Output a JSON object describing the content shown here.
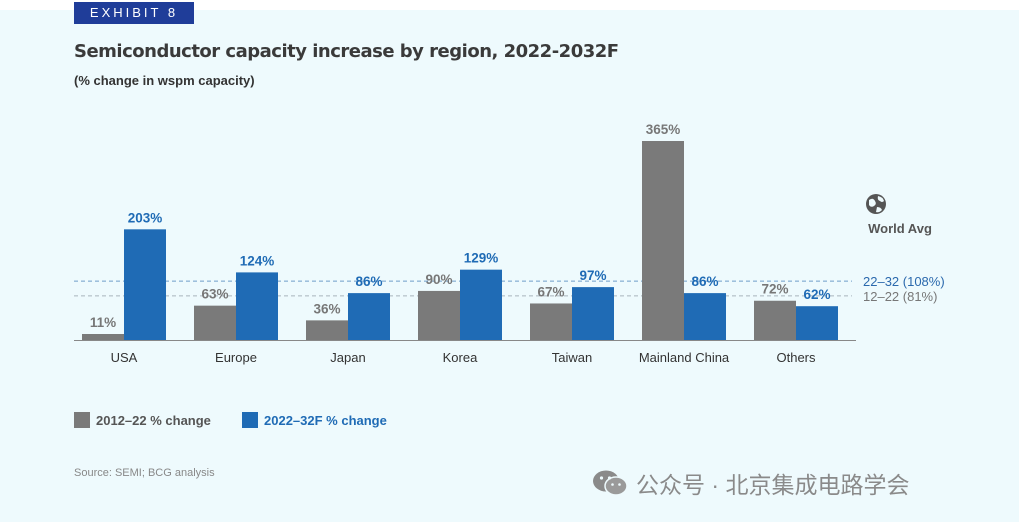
{
  "exhibit": "EXHIBIT 8",
  "title": "Semiconductor capacity increase by region, 2022-2032F",
  "subtitle": "(% change in wspm capacity)",
  "source": "Source: SEMI; BCG analysis",
  "watermark_account": "公众号 · 北京集成电路学会",
  "colors": {
    "grey": "#7a7a7a",
    "blue": "#1f6bb5",
    "background": "#eefafd",
    "exhibit_bg": "#1f3d99"
  },
  "chart_data": {
    "type": "bar",
    "categories": [
      "USA",
      "Europe",
      "Japan",
      "Korea",
      "Taiwan",
      "Mainland China",
      "Others"
    ],
    "series": [
      {
        "name": "2012–22 % change",
        "values": [
          11,
          63,
          36,
          90,
          67,
          365,
          72
        ],
        "labels": [
          "11%",
          "63%",
          "36%",
          "90%",
          "67%",
          "365%",
          "72%"
        ]
      },
      {
        "name": "2022–32F % change",
        "values": [
          203,
          124,
          86,
          129,
          97,
          86,
          62
        ],
        "labels": [
          "203%",
          "124%",
          "86%",
          "129%",
          "97%",
          "86%",
          "62%"
        ]
      }
    ],
    "reference_lines": [
      {
        "label": "22–32 (108%)",
        "value": 108,
        "series": 1
      },
      {
        "label": "12–22 (81%)",
        "value": 81,
        "series": 0
      }
    ],
    "world_avg_label": "World Avg",
    "ylim": [
      0,
      365
    ],
    "legend_position": "bottom-left",
    "grid": false
  }
}
